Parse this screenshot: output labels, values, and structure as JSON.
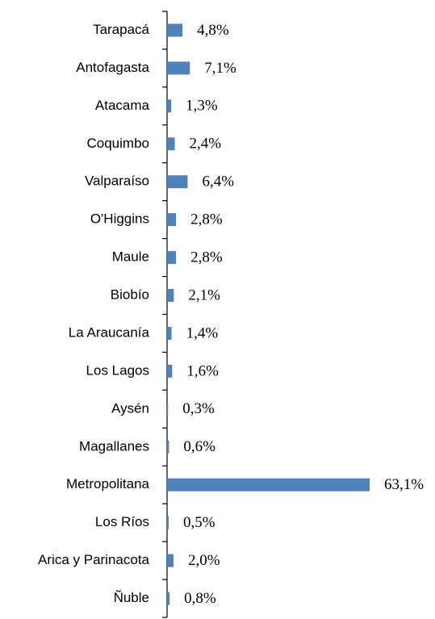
{
  "chart_data": {
    "type": "bar",
    "orientation": "horizontal",
    "color": "#4f81bd",
    "categories": [
      "Tarapacá",
      "Antofagasta",
      "Atacama",
      "Coquimbo",
      "Valparaíso",
      "O'Higgins",
      "Maule",
      "Biobío",
      "La Araucanía",
      "Los Lagos",
      "Aysén",
      "Magallanes",
      "Metropolitana",
      "Los Ríos",
      "Arica y Parinacota",
      "Ñuble"
    ],
    "values": [
      4.8,
      7.1,
      1.3,
      2.4,
      6.4,
      2.8,
      2.8,
      2.1,
      1.4,
      1.6,
      0.3,
      0.6,
      63.1,
      0.5,
      2.0,
      0.8
    ],
    "value_labels": [
      "4,8%",
      "7,1%",
      "1,3%",
      "2,4%",
      "6,4%",
      "2,8%",
      "2,8%",
      "2,1%",
      "1,4%",
      "1,6%",
      "0,3%",
      "0,6%",
      "63,1%",
      "0,5%",
      "2,0%",
      "0,8%"
    ]
  }
}
